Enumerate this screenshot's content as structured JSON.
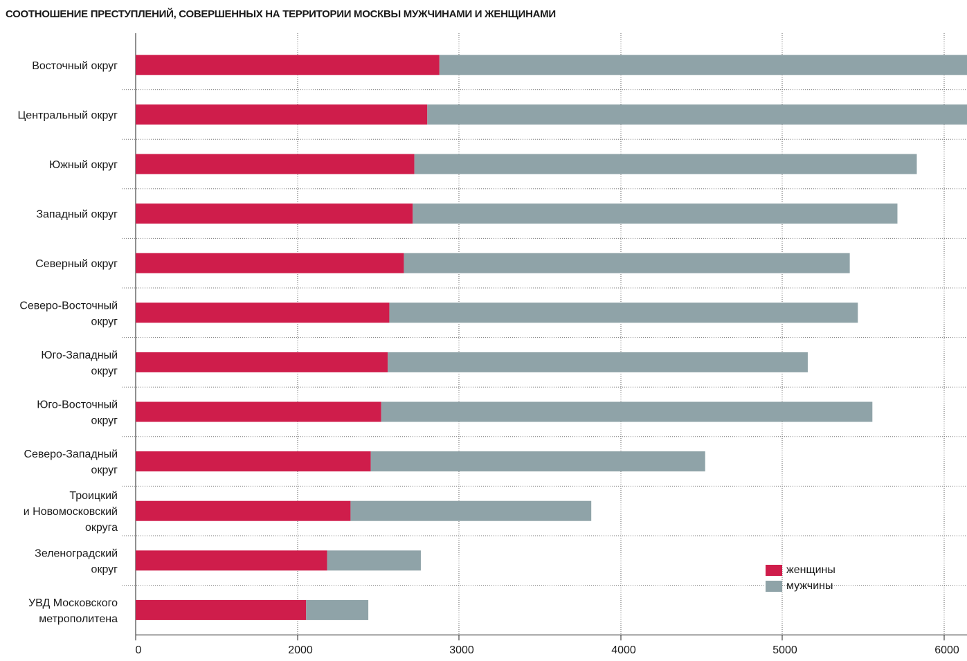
{
  "chart_data": {
    "type": "bar",
    "orientation": "horizontal",
    "stacked": true,
    "title": "СООТНОШЕНИЕ ПРЕСТУПЛЕНИЙ, СОВЕРШЕННЫХ НА ТЕРРИТОРИИ МОСКВЫ МУЖЧИНАМИ И ЖЕНЩИНАМИ",
    "categories": [
      "Восточный округ",
      "Центральный округ",
      "Южный округ",
      "Западный округ",
      "Северный округ",
      "Северо-Восточный\nокруг",
      "Юго-Западный\nокруг",
      "Юго-Восточный\nокруг",
      "Северо-Западный\nокруг",
      "Троицкий\nи Новомосковский\nокруга",
      "Зеленоградский\nокруг",
      "УВД Московского\nметрополитена"
    ],
    "series": [
      {
        "name": "женщины",
        "color": "#cf1d4b",
        "values": [
          1880,
          1805,
          1725,
          1715,
          1660,
          1570,
          1560,
          1520,
          1455,
          1330,
          1185,
          1055
        ]
      },
      {
        "name": "мужчины",
        "color": "#8fa3a8",
        "values": [
          3990,
          3510,
          3110,
          3000,
          2760,
          2900,
          2600,
          3040,
          2070,
          1490,
          580,
          385
        ]
      }
    ],
    "x_ticks": [
      "0",
      "2000",
      "3000",
      "4000",
      "5000",
      "6000"
    ],
    "xlim": [
      0,
      6000
    ],
    "grid": true,
    "legend_position": "bottom-right"
  }
}
